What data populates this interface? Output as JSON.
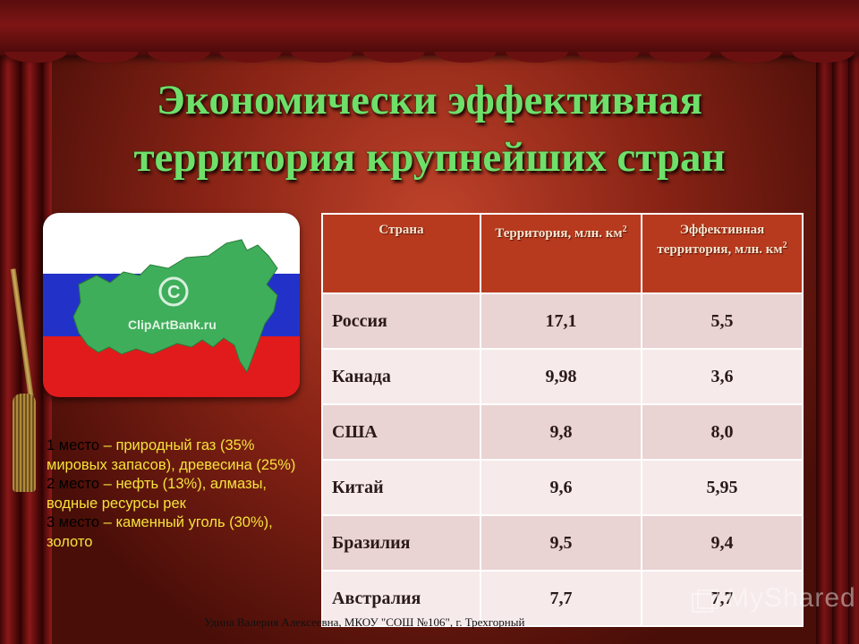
{
  "title": {
    "line1": "Экономически эффективная",
    "line2": "территория крупнейших стран"
  },
  "flag_image": {
    "watermark": "ClipArtBank.ru",
    "colors": [
      "#ffffff",
      "#2232c8",
      "#e11b1b"
    ],
    "map_color": "#3fae5a"
  },
  "facts": [
    {
      "rank": "1 место",
      "text": " – природный газ (35% мировых запасов), древесина (25%)"
    },
    {
      "rank": "2 место",
      "text": " – нефть (13%), алмазы, водные ресурсы рек"
    },
    {
      "rank": "3 место",
      "text": " – каменный уголь (30%), золото"
    }
  ],
  "table": {
    "headers": {
      "country": "Страна",
      "territory": "Территория, млн. км",
      "effective": "Эффективная территория, млн. км",
      "unit_sup": "2"
    },
    "rows": [
      {
        "country": "Россия",
        "territory": "17,1",
        "effective": "5,5"
      },
      {
        "country": "Канада",
        "territory": "9,98",
        "effective": "3,6"
      },
      {
        "country": "США",
        "territory": "9,8",
        "effective": "8,0"
      },
      {
        "country": "Китай",
        "territory": "9,6",
        "effective": "5,95"
      },
      {
        "country": "Бразилия",
        "territory": "9,5",
        "effective": "9,4"
      },
      {
        "country": "Австралия",
        "territory": "7,7",
        "effective": "7,7"
      }
    ]
  },
  "footer": "Удина Валерия Алексеевна, МКОУ \"СОШ №106\", г. Трехгорный",
  "logo": "MyShared"
}
